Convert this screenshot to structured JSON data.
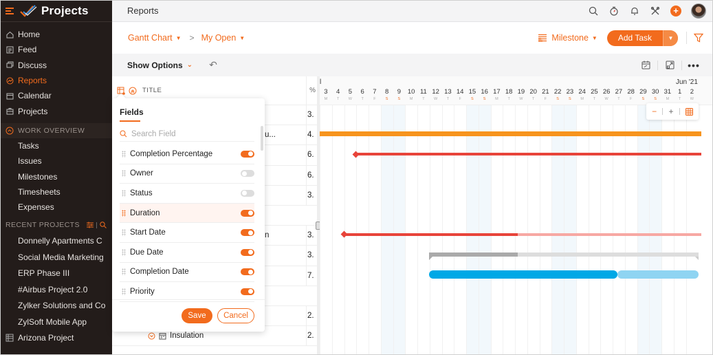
{
  "app": {
    "name": "Projects",
    "accent": "#f26b1d",
    "sidebar_bg": "#231c1a"
  },
  "sidebar": {
    "nav": [
      {
        "label": "Home",
        "icon": "home-icon"
      },
      {
        "label": "Feed",
        "icon": "feed-icon"
      },
      {
        "label": "Discuss",
        "icon": "discuss-icon"
      },
      {
        "label": "Reports",
        "icon": "reports-icon",
        "active": true
      },
      {
        "label": "Calendar",
        "icon": "calendar-icon"
      },
      {
        "label": "Projects",
        "icon": "projects-icon"
      }
    ],
    "work_overview": {
      "label": "WORK OVERVIEW",
      "items": [
        "Tasks",
        "Issues",
        "Milestones",
        "Timesheets",
        "Expenses"
      ]
    },
    "recent_projects": {
      "label": "RECENT PROJECTS",
      "items": [
        "Donnelly Apartments C",
        "Social Media Marketing",
        "ERP Phase III",
        "#Airbus Project 2.0",
        "Zylker Solutions and Co",
        "ZylSoft Mobile App"
      ],
      "extra": "Arizona Project"
    }
  },
  "header": {
    "title": "Reports",
    "icons": [
      "search-icon",
      "timer-icon",
      "bell-icon",
      "tools-icon",
      "plus-icon",
      "avatar"
    ]
  },
  "subheader": {
    "breadcrumb": [
      {
        "label": "Gantt Chart"
      },
      {
        "label": "My Open"
      }
    ],
    "separator": ">",
    "group_by": "Milestone",
    "add_task": "Add Task"
  },
  "options_bar": {
    "show_options": "Show Options"
  },
  "table": {
    "header_title": "TITLE",
    "pct_header": "%",
    "rows": [
      {
        "name": "",
        "pct": "3."
      },
      {
        "name": "u...",
        "pct": "4."
      },
      {
        "name": "",
        "pct": "6."
      },
      {
        "name": "",
        "pct": "6."
      },
      {
        "name": "",
        "pct": "3."
      },
      {
        "name": "",
        "pct": "",
        "group": true
      },
      {
        "name": "n",
        "pct": "3."
      },
      {
        "name": "",
        "pct": "3."
      },
      {
        "name": "",
        "pct": "7."
      },
      {
        "name": "",
        "pct": "",
        "group": true
      },
      {
        "name": "",
        "pct": "2."
      },
      {
        "name": "Insulation",
        "pct": "2.",
        "insulation": true
      }
    ]
  },
  "gantt": {
    "month_label_left": "l",
    "month_label_right": "Jun '21",
    "days": [
      {
        "d": "3",
        "w": "M"
      },
      {
        "d": "4",
        "w": "T"
      },
      {
        "d": "5",
        "w": "W"
      },
      {
        "d": "6",
        "w": "T"
      },
      {
        "d": "7",
        "w": "F"
      },
      {
        "d": "8",
        "w": "S",
        "we": true
      },
      {
        "d": "9",
        "w": "S",
        "we": true
      },
      {
        "d": "10",
        "w": "M"
      },
      {
        "d": "11",
        "w": "T"
      },
      {
        "d": "12",
        "w": "W"
      },
      {
        "d": "13",
        "w": "T"
      },
      {
        "d": "14",
        "w": "F"
      },
      {
        "d": "15",
        "w": "S",
        "we": true
      },
      {
        "d": "16",
        "w": "S",
        "we": true
      },
      {
        "d": "17",
        "w": "M"
      },
      {
        "d": "18",
        "w": "T"
      },
      {
        "d": "19",
        "w": "W"
      },
      {
        "d": "20",
        "w": "T"
      },
      {
        "d": "21",
        "w": "F"
      },
      {
        "d": "22",
        "w": "S",
        "we": true
      },
      {
        "d": "23",
        "w": "S",
        "we": true
      },
      {
        "d": "24",
        "w": "M"
      },
      {
        "d": "25",
        "w": "T"
      },
      {
        "d": "26",
        "w": "W"
      },
      {
        "d": "27",
        "w": "T"
      },
      {
        "d": "28",
        "w": "F"
      },
      {
        "d": "29",
        "w": "S",
        "we": true
      },
      {
        "d": "30",
        "w": "S",
        "we": true
      },
      {
        "d": "31",
        "w": "M"
      },
      {
        "d": "1",
        "w": "T"
      },
      {
        "d": "2",
        "w": "W"
      }
    ],
    "zoom_controls": {
      "minus": "−",
      "plus": "+"
    },
    "bars": [
      {
        "row": 1,
        "start": 0,
        "end": 555,
        "color": "#f7941d",
        "height": 7
      },
      {
        "row": 2,
        "start": 52,
        "end": 555,
        "color": "#e8443a",
        "height": 4,
        "diamond": true
      },
      {
        "row": 6,
        "start": 35,
        "end": 288,
        "color": "#e8443a",
        "height": 4,
        "diamond": true
      },
      {
        "row": 6,
        "start": 288,
        "end": 555,
        "color": "#f7a8a3",
        "height": 4
      },
      {
        "row": 7,
        "start": 159,
        "end": 288,
        "color": "#aaaaaa",
        "height": 6,
        "summary": true
      },
      {
        "row": 7,
        "start": 288,
        "end": 551,
        "color": "#dddddd",
        "height": 6,
        "summary": true
      },
      {
        "row": 8,
        "start": 159,
        "end": 433,
        "color": "#00a8e6",
        "height": 12
      },
      {
        "row": 8,
        "start": 433,
        "end": 551,
        "color": "#8fd4f2",
        "height": 12
      }
    ]
  },
  "fields_popup": {
    "title": "Fields",
    "search_placeholder": "Search Field",
    "fields": [
      {
        "label": "Completion Percentage",
        "on": true
      },
      {
        "label": "Owner",
        "on": false
      },
      {
        "label": "Status",
        "on": false
      },
      {
        "label": "Duration",
        "on": true,
        "highlight": true
      },
      {
        "label": "Start Date",
        "on": true
      },
      {
        "label": "Due Date",
        "on": true
      },
      {
        "label": "Completion Date",
        "on": true
      },
      {
        "label": "Priority",
        "on": true
      }
    ],
    "save_label": "Save",
    "cancel_label": "Cancel"
  }
}
